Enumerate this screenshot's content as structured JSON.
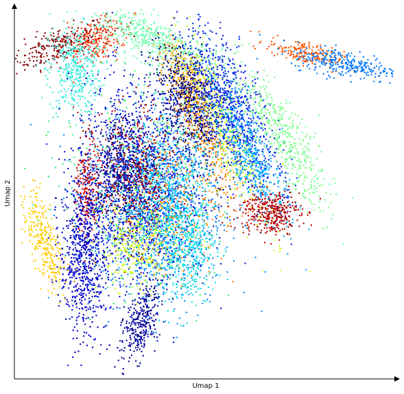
{
  "chart_data": {
    "type": "scatter",
    "title": "",
    "xlabel": "Umap 1",
    "ylabel": "Umap 2",
    "xlim": [
      0,
      100
    ],
    "ylim": [
      0,
      100
    ],
    "grid": false,
    "legend": "none",
    "axis_style": "arrows, no ticks",
    "clusters": [
      {
        "color": "#800000",
        "center": [
          12,
          90
        ],
        "spread": [
          7,
          2.2
        ],
        "angle": 20,
        "n": 260
      },
      {
        "color": "#ff3300",
        "center": [
          21,
          91
        ],
        "spread": [
          3,
          4
        ],
        "angle": -60,
        "n": 220
      },
      {
        "color": "#33eedd",
        "center": [
          16,
          83
        ],
        "spread": [
          3.5,
          6
        ],
        "angle": 0,
        "n": 400
      },
      {
        "color": "#66ffaa",
        "center": [
          37,
          91
        ],
        "spread": [
          10,
          2.8
        ],
        "angle": -25,
        "n": 520
      },
      {
        "color": "#ff5500",
        "center": [
          76,
          88
        ],
        "spread": [
          5,
          1.5
        ],
        "angle": -15,
        "n": 200
      },
      {
        "color": "#0077ff",
        "center": [
          87,
          85
        ],
        "spread": [
          7,
          1.8
        ],
        "angle": -10,
        "n": 300
      },
      {
        "color": "#ffaa00",
        "center": [
          45,
          81
        ],
        "spread": [
          2.5,
          6
        ],
        "angle": 25,
        "n": 240
      },
      {
        "color": "#000080",
        "center": [
          46,
          74
        ],
        "spread": [
          3.5,
          8
        ],
        "angle": 20,
        "n": 700
      },
      {
        "color": "#ff8800",
        "center": [
          50,
          65
        ],
        "spread": [
          2.5,
          10
        ],
        "angle": 25,
        "n": 300
      },
      {
        "color": "#ccff22",
        "center": [
          56,
          66
        ],
        "spread": [
          2.4,
          14
        ],
        "angle": 22,
        "n": 400
      },
      {
        "color": "#0022ee",
        "center": [
          57,
          73
        ],
        "spread": [
          4,
          12
        ],
        "angle": 25,
        "n": 800
      },
      {
        "color": "#00aaff",
        "center": [
          62,
          60
        ],
        "spread": [
          3,
          10
        ],
        "angle": 25,
        "n": 500
      },
      {
        "color": "#77ff88",
        "center": [
          71,
          65
        ],
        "spread": [
          3,
          11
        ],
        "angle": 30,
        "n": 450
      },
      {
        "color": "#bb0000",
        "center": [
          67,
          45
        ],
        "spread": [
          4,
          3
        ],
        "angle": 0,
        "n": 350
      },
      {
        "color": "#33ee66",
        "center": [
          33,
          52
        ],
        "spread": [
          10,
          13
        ],
        "angle": 0,
        "n": 500
      },
      {
        "color": "#0088ff",
        "center": [
          37,
          44
        ],
        "spread": [
          9,
          13
        ],
        "angle": 5,
        "n": 900
      },
      {
        "color": "#0011dd",
        "center": [
          33,
          53
        ],
        "spread": [
          8,
          14
        ],
        "angle": 5,
        "n": 1300
      },
      {
        "color": "#aa0000",
        "center": [
          31,
          54
        ],
        "spread": [
          5,
          9
        ],
        "angle": 0,
        "n": 500
      },
      {
        "color": "#000099",
        "center": [
          29,
          57
        ],
        "spread": [
          4,
          7
        ],
        "angle": 0,
        "n": 400
      },
      {
        "color": "#00ccff",
        "center": [
          40,
          49
        ],
        "spread": [
          6,
          10
        ],
        "angle": 0,
        "n": 600
      },
      {
        "color": "#ccff22",
        "center": [
          32,
          35
        ],
        "spread": [
          5,
          6
        ],
        "angle": 0,
        "n": 300
      },
      {
        "color": "#ff8800",
        "center": [
          43,
          47
        ],
        "spread": [
          6,
          10
        ],
        "angle": 0,
        "n": 250
      },
      {
        "color": "#00ddee",
        "center": [
          45,
          35
        ],
        "spread": [
          4,
          7
        ],
        "angle": 0,
        "n": 350
      },
      {
        "color": "#cc0000",
        "center": [
          19,
          51
        ],
        "spread": [
          1.5,
          7
        ],
        "angle": 0,
        "n": 200
      },
      {
        "color": "#0000cc",
        "center": [
          18,
          34
        ],
        "spread": [
          3,
          11
        ],
        "angle": 0,
        "n": 700
      },
      {
        "color": "#ffcc00",
        "center": [
          8,
          37
        ],
        "spread": [
          2,
          7
        ],
        "angle": 15,
        "n": 300
      },
      {
        "color": "#000099",
        "center": [
          33,
          15
        ],
        "spread": [
          2,
          6
        ],
        "angle": -15,
        "n": 300
      }
    ]
  }
}
